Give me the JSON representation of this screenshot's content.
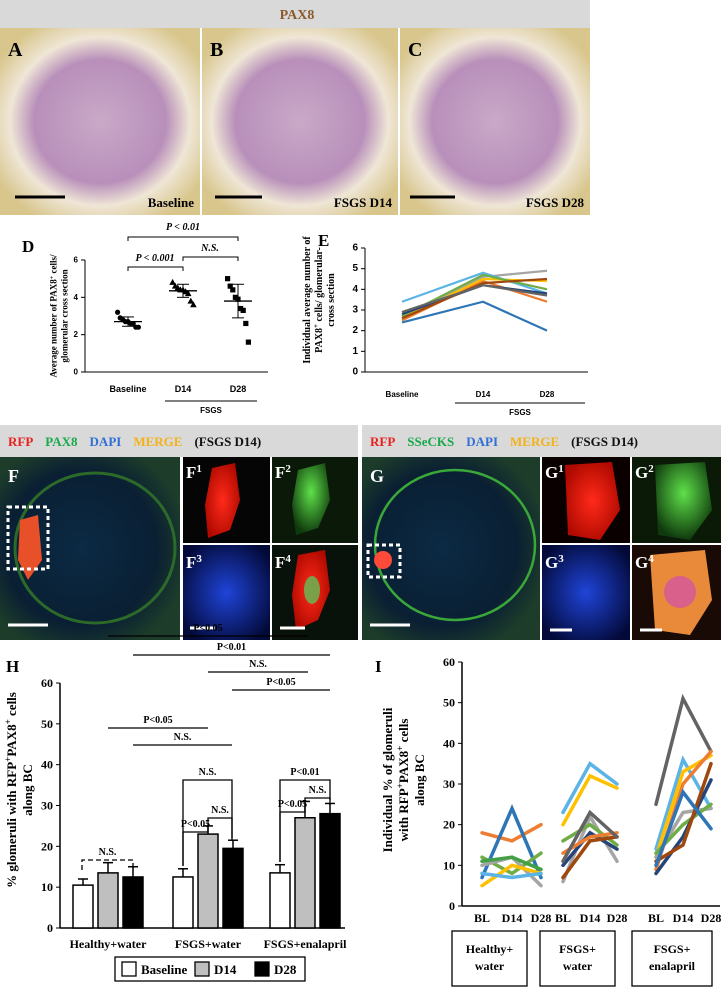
{
  "figure": {
    "pax8_header": "PAX8",
    "panels_abc": [
      {
        "label": "A",
        "caption": "Baseline"
      },
      {
        "label": "B",
        "caption": "FSGS D14"
      },
      {
        "label": "C",
        "caption": "FSGS D28"
      }
    ],
    "stain_rows": [
      {
        "channels": [
          {
            "text": "RFP",
            "color": "#e8231f"
          },
          {
            "text": "PAX8",
            "color": "#19a84b"
          },
          {
            "text": "DAPI",
            "color": "#2f6fd6"
          },
          {
            "text": "MERGE",
            "color": "#f4b119"
          },
          {
            "text": "(FSGS D14)",
            "color": "#111111"
          }
        ],
        "main": "F",
        "insets": [
          {
            "label": "F",
            "sup": "1"
          },
          {
            "label": "F",
            "sup": "2"
          },
          {
            "label": "F",
            "sup": "3"
          },
          {
            "label": "F",
            "sup": "4"
          }
        ]
      },
      {
        "channels": [
          {
            "text": "RFP",
            "color": "#e8231f"
          },
          {
            "text": "SSeCKS",
            "color": "#19a84b"
          },
          {
            "text": "DAPI",
            "color": "#2f6fd6"
          },
          {
            "text": "MERGE",
            "color": "#f4b119"
          },
          {
            "text": "(FSGS D14)",
            "color": "#111111"
          }
        ],
        "main": "G",
        "insets": [
          {
            "label": "G",
            "sup": "1"
          },
          {
            "label": "G",
            "sup": "2"
          },
          {
            "label": "G",
            "sup": "3"
          },
          {
            "label": "G",
            "sup": "4"
          }
        ]
      }
    ]
  },
  "chart_data": [
    {
      "type": "dotplot",
      "panel": "D",
      "ylabel": [
        [
          "Average number of PAX8",
          "+",
          " cells/"
        ],
        [
          "glomerular cross section"
        ]
      ],
      "categories": [
        "Baseline",
        "D14",
        "D28"
      ],
      "group_label": "FSGS",
      "points": [
        [
          3.2,
          2.9,
          2.8,
          2.7,
          2.7,
          2.6,
          2.6,
          2.4,
          2.4
        ],
        [
          4.8,
          4.6,
          4.5,
          4.4,
          4.4,
          4.3,
          4.2,
          3.8,
          3.6
        ],
        [
          5.0,
          4.6,
          4.4,
          4.0,
          3.9,
          3.4,
          3.3,
          2.6,
          1.6
        ]
      ],
      "means": [
        2.7,
        4.35,
        3.8
      ],
      "sd": [
        0.25,
        0.35,
        0.9
      ],
      "ylim": [
        0,
        6
      ],
      "yticks": [
        0,
        2,
        4,
        6
      ],
      "annotations": [
        "P < 0.01",
        "P < 0.001",
        "N.S."
      ]
    },
    {
      "type": "line",
      "panel": "E",
      "ylabel": [
        [
          "Individual average number of"
        ],
        [
          "PAX8",
          "+",
          " cells/ glomerular-"
        ],
        [
          "cross section"
        ]
      ],
      "categories": [
        "Baseline",
        "D14",
        "D28"
      ],
      "group_label": "FSGS",
      "series": [
        {
          "color": "#2e75b6",
          "values": [
            2.4,
            3.4,
            2.0
          ]
        },
        {
          "color": "#ed7d31",
          "values": [
            2.5,
            4.4,
            3.4
          ]
        },
        {
          "color": "#a5a5a5",
          "values": [
            2.7,
            4.6,
            4.9
          ]
        },
        {
          "color": "#ffc000",
          "values": [
            2.6,
            4.5,
            4.4
          ]
        },
        {
          "color": "#5bb4e5",
          "values": [
            3.4,
            4.8,
            3.8
          ]
        },
        {
          "color": "#70ad47",
          "values": [
            2.7,
            4.7,
            4.0
          ]
        },
        {
          "color": "#264478",
          "values": [
            2.8,
            4.2,
            3.8
          ]
        },
        {
          "color": "#9e480e",
          "values": [
            2.6,
            4.3,
            4.5
          ]
        },
        {
          "color": "#636363",
          "values": [
            2.9,
            4.2,
            3.7
          ]
        }
      ],
      "ylim": [
        0,
        6
      ],
      "yticks": [
        0,
        1,
        2,
        3,
        4,
        5,
        6
      ]
    },
    {
      "type": "bar",
      "panel": "H",
      "ylabel": [
        [
          "% glomeruli with RFP",
          "+",
          "PAX8",
          "+",
          " cells"
        ],
        [
          "along BC"
        ]
      ],
      "categories": [
        "Healthy+water",
        "FSGS+water",
        "FSGS+enalapril"
      ],
      "series": [
        {
          "name": "Baseline",
          "color": "#ffffff",
          "values": [
            10.5,
            12.5,
            13.5
          ],
          "errors": [
            1.5,
            2,
            2
          ]
        },
        {
          "name": "D14",
          "color": "#bfbfbf",
          "values": [
            13.5,
            23,
            27
          ],
          "errors": [
            2.5,
            2,
            4
          ]
        },
        {
          "name": "D28",
          "color": "#000000",
          "values": [
            12.5,
            19.5,
            28
          ],
          "errors": [
            2.5,
            2,
            2.5
          ]
        }
      ],
      "ylim": [
        0,
        60
      ],
      "yticks": [
        0,
        10,
        20,
        30,
        40,
        50,
        60
      ],
      "annotations": [
        "P<0.05",
        "P<0.01",
        "N.S.",
        "P<0.05",
        "P<0.05",
        "N.S.",
        "N.S.",
        "P<0.05",
        "N.S.",
        "P<0.01",
        "P<0.05",
        "N.S.",
        "N.S."
      ]
    },
    {
      "type": "grouped-line",
      "panel": "I",
      "ylabel": [
        [
          "Individual % of glomeruli"
        ],
        [
          "with RFP",
          "+",
          "PAX8",
          "+",
          " cells"
        ],
        [
          "along BC"
        ]
      ],
      "groups": [
        {
          "label": [
            "Healthy+",
            "water"
          ],
          "categories": [
            "BL",
            "D14",
            "D28"
          ],
          "series": [
            {
              "color": "#ed7d31",
              "values": [
                18,
                16,
                20
              ]
            },
            {
              "color": "#2e75b6",
              "values": [
                7,
                24,
                7
              ]
            },
            {
              "color": "#70ad47",
              "values": [
                12,
                8,
                13
              ]
            },
            {
              "color": "#a5a5a5",
              "values": [
                10,
                12,
                5
              ]
            },
            {
              "color": "#ffc000",
              "values": [
                5,
                10,
                8
              ]
            },
            {
              "color": "#5bb4e5",
              "values": [
                8,
                7,
                8
              ]
            },
            {
              "color": "#43a047",
              "values": [
                11,
                12,
                9
              ]
            }
          ]
        },
        {
          "label": [
            "FSGS+",
            "water"
          ],
          "categories": [
            "BL",
            "D14",
            "D28"
          ],
          "series": [
            {
              "color": "#5bb4e5",
              "values": [
                23,
                35,
                30
              ]
            },
            {
              "color": "#ffc000",
              "values": [
                20,
                32,
                29
              ]
            },
            {
              "color": "#a5a5a5",
              "values": [
                6,
                22,
                11
              ]
            },
            {
              "color": "#70ad47",
              "values": [
                16,
                20,
                15
              ]
            },
            {
              "color": "#264478",
              "values": [
                10,
                18,
                14
              ]
            },
            {
              "color": "#ed7d31",
              "values": [
                13,
                17,
                18
              ]
            },
            {
              "color": "#9e480e",
              "values": [
                7,
                16,
                17
              ]
            },
            {
              "color": "#636363",
              "values": [
                11,
                23,
                17
              ]
            }
          ]
        },
        {
          "label": [
            "FSGS+",
            "enalapril"
          ],
          "categories": [
            "BL",
            "D14",
            "D28"
          ],
          "series": [
            {
              "color": "#636363",
              "values": [
                25,
                51,
                38
              ]
            },
            {
              "color": "#5bb4e5",
              "values": [
                14,
                36,
                24
              ]
            },
            {
              "color": "#ffc000",
              "values": [
                12,
                33,
                37
              ]
            },
            {
              "color": "#ed7d31",
              "values": [
                9,
                30,
                38
              ]
            },
            {
              "color": "#a5a5a5",
              "values": [
                12,
                23,
                24
              ]
            },
            {
              "color": "#70ad47",
              "values": [
                13,
                20,
                25
              ]
            },
            {
              "color": "#264478",
              "values": [
                8,
                17,
                31
              ]
            },
            {
              "color": "#9e480e",
              "values": [
                11,
                15,
                35
              ]
            },
            {
              "color": "#2e75b6",
              "values": [
                10,
                28,
                19
              ]
            }
          ]
        }
      ],
      "ylim": [
        0,
        60
      ],
      "yticks": [
        0,
        10,
        20,
        30,
        40,
        50,
        60
      ]
    }
  ]
}
